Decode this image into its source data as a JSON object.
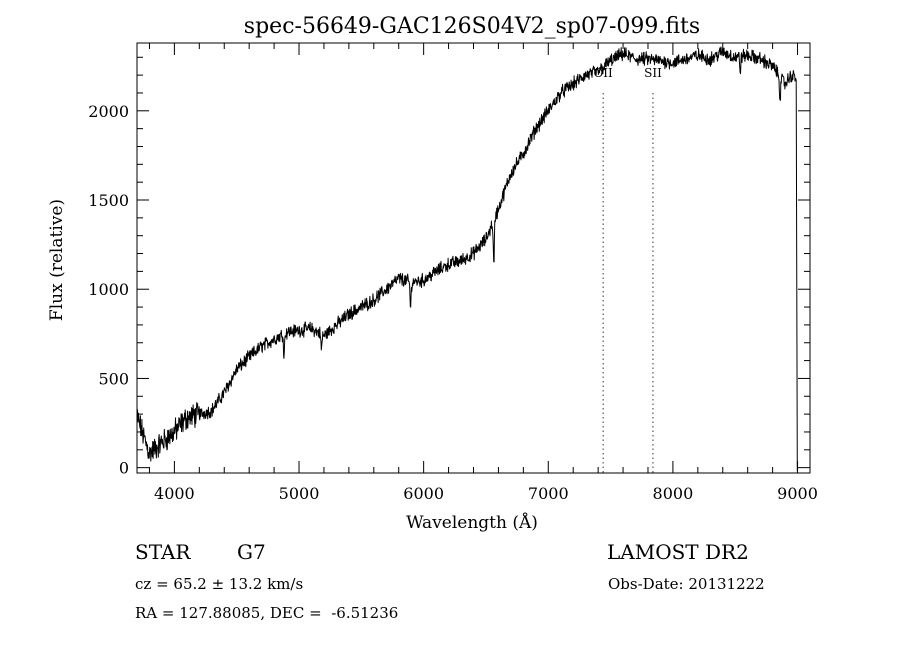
{
  "chart_data": {
    "type": "line",
    "title": "spec-56649-GAC126S04V2_sp07-099.fits",
    "xlabel": "Wavelength (Å)",
    "ylabel": "Flux (relative)",
    "xlim": [
      3700,
      9100
    ],
    "ylim": [
      -30,
      2380
    ],
    "x_ticks": [
      4000,
      5000,
      6000,
      7000,
      8000,
      9000
    ],
    "y_ticks": [
      0,
      500,
      1000,
      1500,
      2000
    ],
    "x_tick_labels": [
      "4000",
      "5000",
      "6000",
      "7000",
      "8000",
      "9000"
    ],
    "y_tick_labels": [
      "0",
      "500",
      "1000",
      "1500",
      "2000"
    ],
    "series": [
      {
        "name": "spectrum",
        "x": [
          3700,
          3750,
          3800,
          3900,
          4000,
          4100,
          4200,
          4300,
          4400,
          4500,
          4600,
          4700,
          4800,
          4900,
          5000,
          5100,
          5200,
          5300,
          5400,
          5500,
          5600,
          5700,
          5800,
          5900,
          6000,
          6100,
          6200,
          6300,
          6400,
          6500,
          6600,
          6700,
          6800,
          6900,
          7000,
          7100,
          7200,
          7300,
          7400,
          7500,
          7600,
          7700,
          7800,
          7900,
          8000,
          8100,
          8200,
          8300,
          8400,
          8500,
          8600,
          8700,
          8800,
          8900,
          8950,
          9000
        ],
        "y": [
          290,
          180,
          80,
          140,
          200,
          280,
          300,
          320,
          420,
          550,
          620,
          680,
          720,
          760,
          770,
          780,
          740,
          800,
          860,
          900,
          940,
          1000,
          1060,
          1040,
          1050,
          1100,
          1140,
          1160,
          1200,
          1280,
          1450,
          1650,
          1760,
          1900,
          2000,
          2100,
          2150,
          2200,
          2220,
          2280,
          2320,
          2290,
          2290,
          2280,
          2270,
          2290,
          2310,
          2290,
          2330,
          2300,
          2310,
          2290,
          2250,
          2150,
          2200,
          2180
        ]
      }
    ],
    "absorption_dips": [
      {
        "x": 4880,
        "depth": 120
      },
      {
        "x": 5180,
        "depth": 90
      },
      {
        "x": 5895,
        "depth": 150
      },
      {
        "x": 6563,
        "depth": 260
      },
      {
        "x": 8540,
        "depth": 80
      },
      {
        "x": 8860,
        "depth": 120
      }
    ],
    "annotations": [
      {
        "label": "OII",
        "x": 7440
      },
      {
        "label": "SII",
        "x": 7840
      }
    ],
    "grid": false
  },
  "info": {
    "object_class": "STAR",
    "subclass": "G7",
    "survey": "LAMOST DR2",
    "redshift": "cz = 65.2 ± 13.2 km/s",
    "obs_date": "Obs-Date: 20131222",
    "coordinates": "RA = 127.88085, DEC =  -6.51236"
  }
}
